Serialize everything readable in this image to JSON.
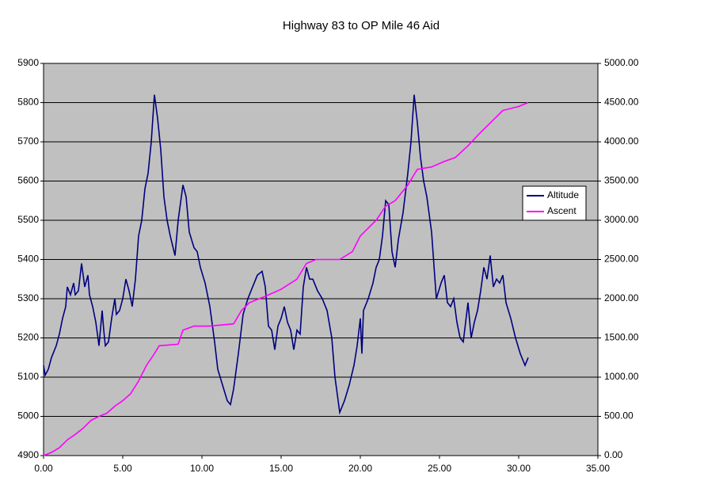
{
  "chart_data": {
    "type": "line",
    "title": "Highway 83 to OP Mile 46 Aid",
    "xlim": [
      0,
      35
    ],
    "xticks": [
      {
        "value": 0,
        "label": "0.00"
      },
      {
        "value": 5,
        "label": "5.00"
      },
      {
        "value": 10,
        "label": "10.00"
      },
      {
        "value": 15,
        "label": "15.00"
      },
      {
        "value": 20,
        "label": "20.00"
      },
      {
        "value": 25,
        "label": "25.00"
      },
      {
        "value": 30,
        "label": "30.00"
      },
      {
        "value": 35,
        "label": "35.00"
      }
    ],
    "ylim": [
      4900,
      5900
    ],
    "yticks": [
      4900,
      5000,
      5100,
      5200,
      5300,
      5400,
      5500,
      5600,
      5700,
      5800,
      5900
    ],
    "y2lim": [
      0,
      5000
    ],
    "y2ticks": [
      {
        "value": 0,
        "label": "0.00"
      },
      {
        "value": 500,
        "label": "500.00"
      },
      {
        "value": 1000,
        "label": "1000.00"
      },
      {
        "value": 1500,
        "label": "1500.00"
      },
      {
        "value": 2000,
        "label": "2000.00"
      },
      {
        "value": 2500,
        "label": "2500.00"
      },
      {
        "value": 3000,
        "label": "3000.00"
      },
      {
        "value": 3500,
        "label": "3500.00"
      },
      {
        "value": 4000,
        "label": "4000.00"
      },
      {
        "value": 4500,
        "label": "4500.00"
      },
      {
        "value": 5000,
        "label": "5000.00"
      }
    ],
    "grid": true,
    "legend": "right",
    "series": [
      {
        "name": "Altitude",
        "color": "#000080",
        "x": [
          0.0,
          0.1,
          0.3,
          0.5,
          0.8,
          1.0,
          1.2,
          1.4,
          1.5,
          1.7,
          1.9,
          2.0,
          2.2,
          2.4,
          2.6,
          2.8,
          2.9,
          3.1,
          3.3,
          3.5,
          3.7,
          3.8,
          3.9,
          4.1,
          4.3,
          4.5,
          4.6,
          4.8,
          5.0,
          5.2,
          5.4,
          5.6,
          5.8,
          6.0,
          6.2,
          6.4,
          6.6,
          6.8,
          7.0,
          7.2,
          7.4,
          7.6,
          7.8,
          8.0,
          8.3,
          8.5,
          8.8,
          9.0,
          9.2,
          9.5,
          9.7,
          9.9,
          10.2,
          10.5,
          10.8,
          11.0,
          11.3,
          11.6,
          11.8,
          12.0,
          12.3,
          12.6,
          12.9,
          13.2,
          13.5,
          13.8,
          14.0,
          14.2,
          14.4,
          14.6,
          14.8,
          15.0,
          15.2,
          15.4,
          15.6,
          15.8,
          16.0,
          16.2,
          16.4,
          16.6,
          16.8,
          17.0,
          17.3,
          17.6,
          17.9,
          18.2,
          18.4,
          18.6,
          18.7,
          19.0,
          19.3,
          19.6,
          19.8,
          20.0,
          20.1,
          20.2,
          20.5,
          20.8,
          21.0,
          21.2,
          21.4,
          21.6,
          21.8,
          22.0,
          22.2,
          22.4,
          22.7,
          23.0,
          23.2,
          23.4,
          23.6,
          23.8,
          24.0,
          24.2,
          24.5,
          24.8,
          25.1,
          25.3,
          25.5,
          25.7,
          25.9,
          26.1,
          26.3,
          26.5,
          26.8,
          27.0,
          27.2,
          27.4,
          27.6,
          27.8,
          28.0,
          28.2,
          28.4,
          28.6,
          28.8,
          29.0,
          29.2,
          29.5,
          29.8,
          30.1,
          30.4,
          30.6
        ],
        "values": [
          5130,
          5105,
          5120,
          5150,
          5180,
          5210,
          5250,
          5280,
          5330,
          5310,
          5340,
          5310,
          5320,
          5390,
          5330,
          5360,
          5310,
          5280,
          5240,
          5180,
          5270,
          5220,
          5180,
          5190,
          5250,
          5300,
          5260,
          5270,
          5300,
          5350,
          5320,
          5280,
          5350,
          5460,
          5500,
          5580,
          5620,
          5700,
          5820,
          5760,
          5680,
          5560,
          5500,
          5460,
          5410,
          5500,
          5590,
          5560,
          5470,
          5430,
          5420,
          5380,
          5340,
          5280,
          5190,
          5120,
          5080,
          5040,
          5030,
          5070,
          5160,
          5260,
          5300,
          5330,
          5360,
          5370,
          5330,
          5230,
          5220,
          5170,
          5230,
          5250,
          5280,
          5240,
          5220,
          5170,
          5220,
          5210,
          5330,
          5380,
          5350,
          5350,
          5320,
          5300,
          5270,
          5200,
          5100,
          5040,
          5010,
          5040,
          5080,
          5130,
          5180,
          5250,
          5160,
          5270,
          5300,
          5340,
          5380,
          5400,
          5460,
          5550,
          5540,
          5420,
          5380,
          5450,
          5520,
          5620,
          5700,
          5820,
          5750,
          5660,
          5600,
          5560,
          5470,
          5300,
          5340,
          5360,
          5290,
          5280,
          5300,
          5240,
          5200,
          5190,
          5290,
          5200,
          5240,
          5270,
          5320,
          5380,
          5350,
          5410,
          5330,
          5350,
          5340,
          5360,
          5290,
          5250,
          5200,
          5160,
          5130,
          5150
        ]
      },
      {
        "name": "Ascent",
        "color": "#ff00ff",
        "axis": "y2",
        "x": [
          0,
          0.5,
          1.0,
          1.5,
          2.0,
          2.5,
          3.0,
          3.5,
          4.0,
          4.5,
          5.0,
          5.5,
          6.0,
          6.5,
          7.0,
          7.3,
          8.5,
          8.8,
          9.5,
          10.5,
          12.0,
          12.5,
          13.0,
          14.0,
          15.0,
          16.0,
          16.6,
          17.2,
          18.7,
          19.5,
          20.0,
          21.0,
          21.6,
          22.2,
          23.0,
          23.6,
          24.5,
          25.3,
          26.0,
          26.8,
          27.5,
          28.5,
          29.0,
          30.0,
          30.6
        ],
        "values": [
          0,
          40,
          100,
          200,
          270,
          350,
          450,
          500,
          540,
          630,
          700,
          790,
          950,
          1150,
          1300,
          1400,
          1420,
          1600,
          1650,
          1650,
          1680,
          1850,
          1950,
          2030,
          2120,
          2250,
          2450,
          2500,
          2500,
          2600,
          2800,
          3000,
          3180,
          3250,
          3450,
          3650,
          3680,
          3750,
          3800,
          3950,
          4100,
          4300,
          4400,
          4450,
          4500
        ]
      }
    ]
  }
}
